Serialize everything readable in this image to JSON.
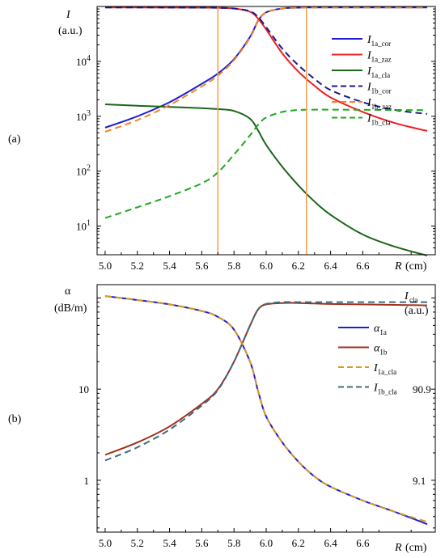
{
  "chart_data": [
    {
      "panel_label": "(a)",
      "type": "line",
      "ylabel": "I",
      "yunit": "(a.u.)",
      "xlabel_text": "R",
      "xunit": "(cm)",
      "yscale": "log",
      "xlim": [
        4.95,
        7.05
      ],
      "ylim": [
        3,
        100000
      ],
      "xticks": [
        "5.0",
        "5.2",
        "5.4",
        "5.6",
        "5.8",
        "6.0",
        "6.2",
        "6.4",
        "6.6"
      ],
      "yticks": [
        {
          "v": 10,
          "base": "10",
          "exp": "1"
        },
        {
          "v": 100,
          "base": "10",
          "exp": "2"
        },
        {
          "v": 1000,
          "base": "10",
          "exp": "3"
        },
        {
          "v": 10000,
          "base": "10",
          "exp": "4"
        }
      ],
      "vlines": {
        "x": [
          5.7,
          6.25
        ],
        "color": "#f5a04a"
      },
      "x": [
        5.0,
        5.2,
        5.4,
        5.6,
        5.7,
        5.8,
        5.9,
        5.95,
        6.0,
        6.1,
        6.2,
        6.3,
        6.4,
        6.6,
        6.8,
        7.0
      ],
      "series": [
        {
          "name": "I",
          "sub": "1a_cor",
          "color": "#1f1fcf",
          "dash": false,
          "values": [
            620,
            1000,
            1800,
            3900,
            6000,
            11000,
            28000,
            55000,
            78000,
            92000,
            95000,
            96000,
            96000,
            96000,
            96000,
            96000
          ]
        },
        {
          "name": "I",
          "sub": "1a_zaz",
          "color": "#ee2020",
          "dash": false,
          "values": [
            96000,
            96000,
            95500,
            95000,
            94500,
            92000,
            80000,
            60000,
            38000,
            14000,
            6500,
            3600,
            2200,
            1200,
            750,
            540
          ]
        },
        {
          "name": "I",
          "sub": "1a_cla",
          "color": "#1a661a",
          "dash": false,
          "values": [
            1650,
            1550,
            1480,
            1400,
            1350,
            1250,
            900,
            550,
            300,
            120,
            55,
            28,
            16,
            7,
            4.2,
            2.9
          ]
        },
        {
          "name": "I",
          "sub": "1b_cor",
          "color": "#1a1a8c",
          "dash": true,
          "values": [
            96000,
            96000,
            95500,
            95000,
            94500,
            92000,
            82000,
            64000,
            42000,
            17000,
            8500,
            4800,
            3000,
            1800,
            1300,
            1100
          ]
        },
        {
          "name": "I",
          "sub": "1b_zaz",
          "color": "#f5822a",
          "dash": true,
          "values": [
            520,
            850,
            1600,
            3500,
            5500,
            10500,
            27000,
            54000,
            78000,
            92000,
            95000,
            96000,
            96000,
            96000,
            96000,
            96000
          ]
        },
        {
          "name": "I",
          "sub": "1b_cla",
          "color": "#1ea81e",
          "dash": true,
          "values": [
            14,
            22,
            35,
            60,
            95,
            200,
            450,
            700,
            950,
            1200,
            1300,
            1320,
            1320,
            1310,
            1300,
            1290
          ]
        }
      ]
    },
    {
      "panel_label": "(b)",
      "type": "line",
      "ylabel": "α",
      "yunit": "(dB/m)",
      "xlabel_text": "R",
      "xunit": "(cm)",
      "yscale": "log",
      "xlim": [
        4.95,
        7.05
      ],
      "ylim": [
        0.27,
        140
      ],
      "xticks": [
        "5.0",
        "5.2",
        "5.4",
        "5.6",
        "5.8",
        "6.0",
        "6.2",
        "6.4",
        "6.6"
      ],
      "yticks_left": [
        {
          "v": 1,
          "label": "1"
        },
        {
          "v": 10,
          "label": "10"
        }
      ],
      "right_axis": {
        "title": "I",
        "sub": "cla",
        "unit": "(a.u.)",
        "ticks": [
          {
            "v": 1,
            "label": "9.1"
          },
          {
            "v": 10,
            "label": "90.9"
          }
        ]
      },
      "x": [
        5.0,
        5.2,
        5.4,
        5.6,
        5.7,
        5.8,
        5.9,
        5.95,
        6.0,
        6.1,
        6.2,
        6.3,
        6.4,
        6.6,
        6.8,
        7.0
      ],
      "series": [
        {
          "name": "α",
          "sub": "1a",
          "color": "#1f1fcf",
          "dash": false,
          "values": [
            105,
            95,
            85,
            72,
            62,
            45,
            20,
            9.5,
            5.0,
            2.6,
            1.6,
            1.1,
            0.85,
            0.6,
            0.45,
            0.33
          ]
        },
        {
          "name": "α",
          "sub": "1b",
          "color": "#a0301c",
          "dash": false,
          "values": [
            1.9,
            2.6,
            3.9,
            6.9,
            10,
            20,
            50,
            75,
            85,
            88,
            88,
            87,
            86,
            85,
            84,
            83
          ]
        },
        {
          "name": "I",
          "sub": "1a_cla",
          "color": "#d99a22",
          "dash": true,
          "values": [
            105,
            95,
            85,
            72,
            62,
            45,
            20,
            9.5,
            5.0,
            2.6,
            1.6,
            1.1,
            0.85,
            0.6,
            0.45,
            0.35
          ]
        },
        {
          "name": "I",
          "sub": "1b_cla",
          "color": "#3d6a80",
          "dash": true,
          "values": [
            1.65,
            2.3,
            3.6,
            6.6,
            9.8,
            20,
            50,
            75,
            86,
            90,
            90,
            90,
            90,
            90,
            90,
            90
          ]
        }
      ]
    }
  ]
}
